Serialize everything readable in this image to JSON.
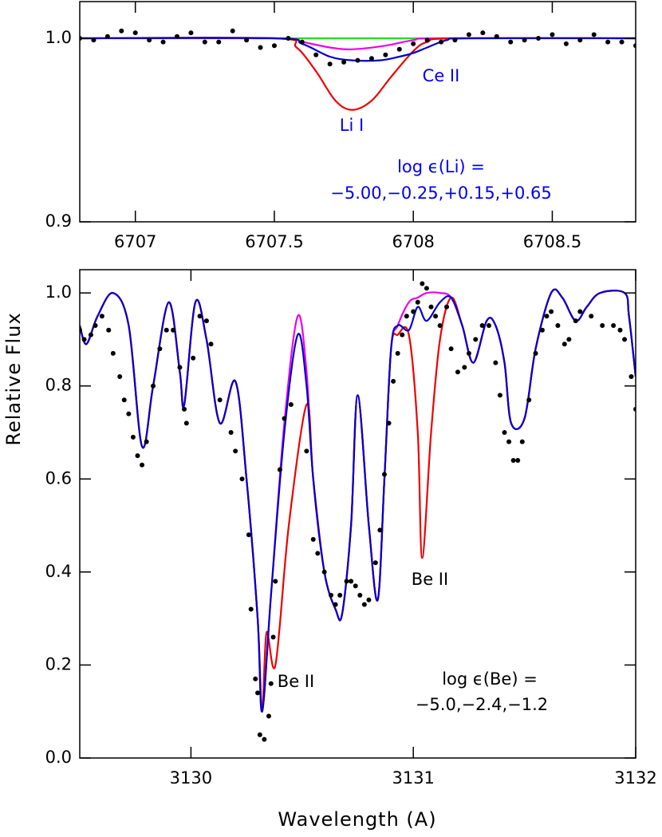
{
  "chart_data": [
    {
      "type": "line",
      "xlim": [
        6706.8,
        6708.8
      ],
      "ylim": [
        0.9,
        1.02
      ],
      "xticks": [
        6707,
        6707.5,
        6708,
        6708.5
      ],
      "yticks": [
        0.9,
        {
          "value": 1,
          "label": "1.0"
        }
      ],
      "annotations": [
        {
          "text": "Ce II",
          "color": "#0000ee"
        },
        {
          "text": "Li I",
          "color": "#0000ee"
        },
        {
          "text": "log ϵ(Li) =",
          "color": "#0000ee"
        },
        {
          "text": "−5.00,−0.25,+0.15,+0.65",
          "color": "#0000ee"
        }
      ],
      "series": [
        {
          "style": "line",
          "color": "#22dd22",
          "x": [
            6706.8,
            6708.8
          ],
          "values": [
            1,
            1
          ]
        },
        {
          "style": "line",
          "color": "#ee00ee",
          "x": [
            6706.8,
            6707.5,
            6707.6,
            6707.7,
            6707.78,
            6707.9,
            6708.0,
            6708.1,
            6708.8
          ],
          "values": [
            1,
            1,
            0.998,
            0.995,
            0.994,
            0.996,
            0.999,
            1,
            1
          ]
        },
        {
          "style": "line",
          "color": "#ee0000",
          "x": [
            6706.8,
            6707.5,
            6707.58,
            6707.65,
            6707.72,
            6707.78,
            6707.85,
            6707.92,
            6708.0,
            6708.05,
            6708.15,
            6708.8
          ],
          "values": [
            1,
            1,
            0.995,
            0.982,
            0.966,
            0.961,
            0.966,
            0.979,
            0.993,
            0.998,
            1,
            1
          ]
        },
        {
          "style": "line",
          "color": "#0000cc",
          "x": [
            6706.8,
            6707.5,
            6707.6,
            6707.7,
            6707.78,
            6707.88,
            6707.95,
            6708.0,
            6708.05,
            6708.12,
            6708.2,
            6708.8
          ],
          "values": [
            1,
            1,
            0.997,
            0.99,
            0.988,
            0.988,
            0.99,
            0.992,
            0.995,
            0.999,
            1,
            1
          ]
        },
        {
          "style": "dots",
          "color": "#000000",
          "x": [
            6706.8,
            6706.85,
            6706.9,
            6706.95,
            6707.0,
            6707.05,
            6707.1,
            6707.15,
            6707.2,
            6707.25,
            6707.3,
            6707.35,
            6707.4,
            6707.45,
            6707.5,
            6707.55,
            6707.6,
            6707.65,
            6707.7,
            6707.75,
            6707.8,
            6707.85,
            6707.9,
            6707.95,
            6708.0,
            6708.05,
            6708.1,
            6708.15,
            6708.2,
            6708.25,
            6708.3,
            6708.35,
            6708.4,
            6708.45,
            6708.5,
            6708.55,
            6708.6,
            6708.65,
            6708.7,
            6708.75,
            6708.8
          ],
          "values": [
            1,
            0.999,
            1.001,
            1.004,
            1.003,
            0.999,
            0.998,
            1.001,
            1.003,
            0.998,
            0.998,
            1.004,
            0.999,
            0.995,
            0.996,
            1,
            0.998,
            0.991,
            0.986,
            0.987,
            0.988,
            0.989,
            0.991,
            0.994,
            0.997,
            0.999,
            0.998,
            0.999,
            1.002,
            1.003,
            1.001,
            0.998,
            0.999,
            1,
            1.002,
            0.997,
            0.999,
            1.002,
            0.998,
            0.998,
            0.996
          ]
        }
      ]
    },
    {
      "type": "line",
      "x_label": "Wavelength (A)",
      "y_label": "Relative Flux",
      "xlim": [
        3129.5,
        3132
      ],
      "ylim": [
        0,
        1.05
      ],
      "xticks": [
        3130,
        3131,
        3132
      ],
      "yticks": [
        {
          "value": 0,
          "label": "0.0"
        },
        0.2,
        0.4,
        0.6,
        0.8,
        {
          "value": 1,
          "label": "1.0"
        }
      ],
      "annotations": [
        {
          "text": "Be II",
          "color": "#000000"
        },
        {
          "text": "Be II",
          "color": "#000000"
        },
        {
          "text": "log ϵ(Be) =",
          "color": "#000000"
        },
        {
          "text": "−5.0,−2.4,−1.2",
          "color": "#000000"
        }
      ],
      "series": [
        {
          "style": "line",
          "color": "#ee00ee",
          "x": [
            3129.5,
            3129.53,
            3129.58,
            3129.65,
            3129.72,
            3129.78,
            3129.83,
            3129.9,
            3129.95,
            3129.97,
            3130.02,
            3130.07,
            3130.13,
            3130.2,
            3130.25,
            3130.3,
            3130.32,
            3130.36,
            3130.42,
            3130.48,
            3130.52,
            3130.55,
            3130.6,
            3130.65,
            3130.68,
            3130.72,
            3130.75,
            3130.8,
            3130.84,
            3130.87,
            3130.9,
            3130.93,
            3130.98,
            3131.02,
            3131.06,
            3131.12,
            3131.17,
            3131.22,
            3131.27,
            3131.33,
            3131.37,
            3131.41,
            3131.44,
            3131.5,
            3131.55,
            3131.62,
            3131.67,
            3131.73,
            3131.78,
            3131.84,
            3131.95,
            3131.97,
            3132.0
          ],
          "values": [
            0.93,
            0.89,
            0.95,
            1,
            0.93,
            0.67,
            0.8,
            0.98,
            0.83,
            0.76,
            0.98,
            0.9,
            0.72,
            0.81,
            0.6,
            0.3,
            0.1,
            0.35,
            0.72,
            0.95,
            0.83,
            0.6,
            0.4,
            0.32,
            0.31,
            0.5,
            0.78,
            0.5,
            0.34,
            0.6,
            0.88,
            0.93,
            0.98,
            0.99,
            1,
            1,
            0.99,
            0.93,
            0.85,
            0.94,
            0.93,
            0.85,
            0.72,
            0.73,
            0.88,
            1,
            0.99,
            0.94,
            0.97,
            1,
            1,
            0.95,
            0.82
          ]
        },
        {
          "style": "line",
          "color": "#ee0000",
          "x": [
            3129.5,
            3129.53,
            3129.58,
            3129.65,
            3129.72,
            3129.78,
            3129.83,
            3129.9,
            3129.95,
            3129.97,
            3130.02,
            3130.07,
            3130.13,
            3130.2,
            3130.25,
            3130.3,
            3130.32,
            3130.34,
            3130.38,
            3130.44,
            3130.52,
            3130.55,
            3130.6,
            3130.65,
            3130.68,
            3130.72,
            3130.75,
            3130.8,
            3130.84,
            3130.87,
            3130.9,
            3130.93,
            3130.98,
            3131.02,
            3131.04,
            3131.08,
            3131.12,
            3131.17,
            3131.22,
            3131.27,
            3131.33,
            3131.37,
            3131.41,
            3131.44,
            3131.5,
            3131.55,
            3131.62,
            3131.67,
            3131.73,
            3131.78,
            3131.84,
            3131.95,
            3131.97,
            3132.0
          ],
          "values": [
            0.93,
            0.89,
            0.95,
            1,
            0.93,
            0.67,
            0.8,
            0.98,
            0.83,
            0.76,
            0.98,
            0.9,
            0.72,
            0.81,
            0.6,
            0.3,
            0.1,
            0.27,
            0.2,
            0.5,
            0.76,
            0.6,
            0.4,
            0.32,
            0.31,
            0.5,
            0.78,
            0.5,
            0.34,
            0.6,
            0.88,
            0.91,
            0.91,
            0.7,
            0.43,
            0.7,
            0.9,
            0.99,
            0.93,
            0.85,
            0.94,
            0.93,
            0.85,
            0.72,
            0.73,
            0.88,
            1,
            0.99,
            0.94,
            0.97,
            1,
            1,
            0.95,
            0.82
          ]
        },
        {
          "style": "line",
          "color": "#0000cc",
          "x": [
            3129.5,
            3129.53,
            3129.58,
            3129.65,
            3129.72,
            3129.78,
            3129.83,
            3129.9,
            3129.95,
            3129.97,
            3130.02,
            3130.07,
            3130.13,
            3130.2,
            3130.25,
            3130.3,
            3130.32,
            3130.36,
            3130.42,
            3130.48,
            3130.52,
            3130.55,
            3130.6,
            3130.65,
            3130.68,
            3130.72,
            3130.75,
            3130.8,
            3130.84,
            3130.87,
            3130.9,
            3130.93,
            3130.98,
            3131.02,
            3131.06,
            3131.12,
            3131.17,
            3131.22,
            3131.27,
            3131.33,
            3131.37,
            3131.41,
            3131.44,
            3131.5,
            3131.55,
            3131.62,
            3131.67,
            3131.73,
            3131.78,
            3131.84,
            3131.95,
            3131.97,
            3132.0
          ],
          "values": [
            0.93,
            0.89,
            0.95,
            1,
            0.93,
            0.67,
            0.8,
            0.98,
            0.83,
            0.76,
            0.98,
            0.9,
            0.72,
            0.81,
            0.6,
            0.3,
            0.1,
            0.35,
            0.7,
            0.91,
            0.8,
            0.6,
            0.4,
            0.32,
            0.31,
            0.5,
            0.78,
            0.5,
            0.34,
            0.6,
            0.88,
            0.93,
            0.92,
            0.97,
            0.94,
            0.98,
            0.99,
            0.93,
            0.85,
            0.94,
            0.93,
            0.85,
            0.72,
            0.73,
            0.88,
            1,
            0.99,
            0.94,
            0.97,
            1,
            1,
            0.95,
            0.82
          ]
        },
        {
          "style": "dots",
          "color": "#000000",
          "x": [
            3129.5,
            3129.52,
            3129.55,
            3129.57,
            3129.6,
            3129.63,
            3129.65,
            3129.68,
            3129.7,
            3129.72,
            3129.74,
            3129.76,
            3129.78,
            3129.8,
            3129.83,
            3129.86,
            3129.89,
            3129.92,
            3129.95,
            3129.97,
            3129.98,
            3130.01,
            3130.04,
            3130.07,
            3130.09,
            3130.13,
            3130.18,
            3130.2,
            3130.23,
            3130.26,
            3130.27,
            3130.29,
            3130.3,
            3130.31,
            3130.33,
            3130.35,
            3130.36,
            3130.37,
            3130.38,
            3130.4,
            3130.42,
            3130.45,
            3130.52,
            3130.55,
            3130.57,
            3130.6,
            3130.63,
            3130.65,
            3130.67,
            3130.7,
            3130.72,
            3130.74,
            3130.76,
            3130.78,
            3130.8,
            3130.83,
            3130.85,
            3130.87,
            3130.89,
            3130.91,
            3130.93,
            3130.95,
            3130.97,
            3131.0,
            3131.02,
            3131.04,
            3131.06,
            3131.08,
            3131.1,
            3131.12,
            3131.15,
            3131.17,
            3131.2,
            3131.23,
            3131.25,
            3131.28,
            3131.31,
            3131.34,
            3131.37,
            3131.39,
            3131.41,
            3131.43,
            3131.45,
            3131.47,
            3131.49,
            3131.52,
            3131.55,
            3131.58,
            3131.6,
            3131.62,
            3131.65,
            3131.68,
            3131.7,
            3131.73,
            3131.75,
            3131.8,
            3131.85,
            3131.9,
            3131.93,
            3131.95,
            3131.98,
            3132.0
          ],
          "values": [
            0.92,
            0.9,
            0.91,
            0.93,
            0.95,
            0.92,
            0.87,
            0.82,
            0.77,
            0.74,
            0.69,
            0.65,
            0.63,
            0.68,
            0.8,
            0.88,
            0.92,
            0.92,
            0.84,
            0.75,
            0.72,
            0.86,
            0.95,
            0.94,
            0.89,
            0.77,
            0.7,
            0.66,
            0.6,
            0.48,
            0.32,
            0.17,
            0.14,
            0.05,
            0.04,
            0.09,
            0.16,
            0.26,
            0.38,
            0.62,
            0.73,
            0.76,
            0.66,
            0.47,
            0.44,
            0.4,
            0.35,
            0.33,
            0.35,
            0.38,
            0.38,
            0.37,
            0.35,
            0.33,
            0.34,
            0.42,
            0.49,
            0.61,
            0.72,
            0.81,
            0.87,
            0.91,
            0.95,
            0.96,
            0.98,
            1.02,
            1.01,
            0.97,
            0.95,
            0.93,
            0.97,
            0.88,
            0.83,
            0.84,
            0.87,
            0.9,
            0.93,
            0.93,
            0.85,
            0.78,
            0.7,
            0.68,
            0.64,
            0.64,
            0.68,
            0.77,
            0.87,
            0.92,
            0.95,
            0.96,
            0.93,
            0.89,
            0.9,
            0.94,
            0.96,
            0.95,
            0.93,
            0.93,
            0.92,
            0.9,
            0.82,
            0.75
          ]
        }
      ]
    }
  ]
}
